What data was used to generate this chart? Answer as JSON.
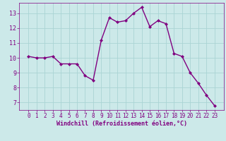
{
  "x": [
    0,
    1,
    2,
    3,
    4,
    5,
    6,
    7,
    8,
    9,
    10,
    11,
    12,
    13,
    14,
    15,
    16,
    17,
    18,
    19,
    20,
    21,
    22,
    23
  ],
  "y": [
    10.1,
    10.0,
    10.0,
    10.1,
    9.6,
    9.6,
    9.6,
    8.8,
    8.5,
    11.2,
    12.7,
    12.4,
    12.5,
    13.0,
    13.4,
    12.1,
    12.5,
    12.3,
    10.3,
    10.1,
    9.0,
    8.3,
    7.5,
    6.8
  ],
  "line_color": "#800080",
  "marker": "D",
  "marker_size": 2.0,
  "background_color": "#cce9e9",
  "grid_color": "#aad4d4",
  "xlabel": "Windchill (Refroidissement éolien,°C)",
  "xlabel_color": "#800080",
  "tick_color": "#800080",
  "ylim": [
    6.5,
    13.7
  ],
  "yticks": [
    7,
    8,
    9,
    10,
    11,
    12,
    13
  ],
  "xticks": [
    0,
    1,
    2,
    3,
    4,
    5,
    6,
    7,
    8,
    9,
    10,
    11,
    12,
    13,
    14,
    15,
    16,
    17,
    18,
    19,
    20,
    21,
    22,
    23
  ],
  "line_width": 1.0,
  "tick_fontsize": 5.5,
  "xlabel_fontsize": 6.0,
  "xlabel_fontweight": "bold"
}
